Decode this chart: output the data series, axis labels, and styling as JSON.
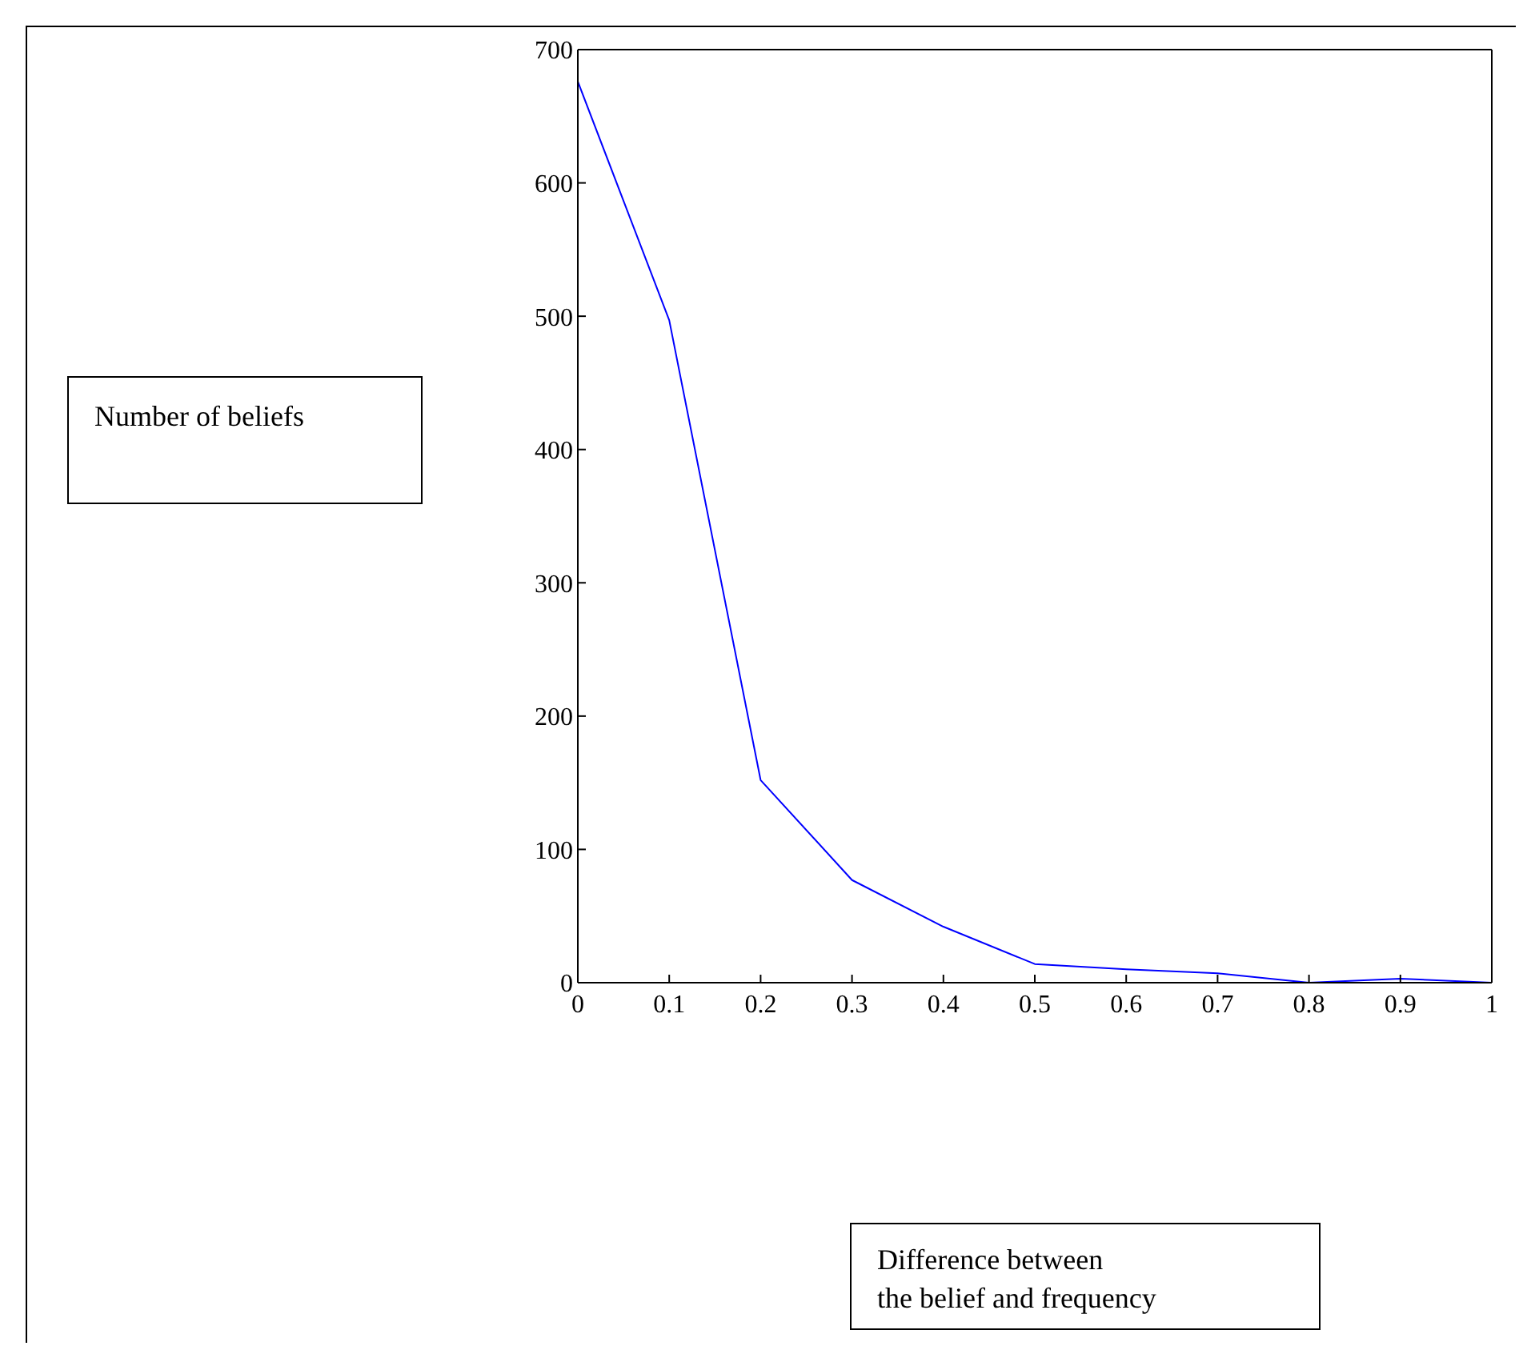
{
  "chart_data": {
    "type": "line",
    "annotations": [
      "Number of beliefs",
      "Difference between\nthe belief and frequency"
    ],
    "x": [
      0,
      0.1,
      0.2,
      0.3,
      0.4,
      0.5,
      0.6,
      0.7,
      0.8,
      0.9,
      1
    ],
    "series": [
      {
        "color": "#0000ff",
        "values": [
          676,
          497,
          152,
          77,
          42,
          14,
          10,
          7,
          0,
          3,
          0
        ]
      }
    ],
    "xlim": [
      0,
      1
    ],
    "xticks": [
      0,
      0.1,
      0.2,
      0.3,
      0.4,
      0.5,
      0.6,
      0.7,
      0.8,
      0.9,
      1
    ],
    "ylim": [
      0,
      700
    ],
    "yticks": [
      0,
      100,
      200,
      300,
      400,
      500,
      600,
      700
    ],
    "legend": false,
    "marker": "none",
    "line_style": "solid"
  }
}
